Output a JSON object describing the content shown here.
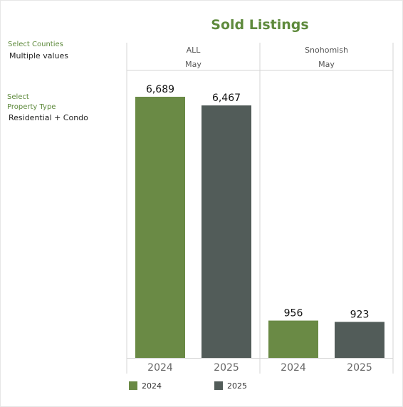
{
  "filters": {
    "counties": {
      "label": "Select Counties",
      "value": "Multiple values"
    },
    "property_type": {
      "label_line1": "Select",
      "label_line2": "Property Type",
      "value": "Residential + Condo"
    }
  },
  "legend": [
    {
      "label": "2024",
      "color": "#6a8a45"
    },
    {
      "label": "2025",
      "color": "#525c59"
    }
  ],
  "chart_data": {
    "type": "bar",
    "title": "Sold Listings",
    "panels": [
      {
        "region": "ALL",
        "month": "May",
        "categories": [
          "2024",
          "2025"
        ],
        "values": [
          6689,
          6467
        ],
        "value_labels": [
          "6,689",
          "6,467"
        ]
      },
      {
        "region": "Snohomish",
        "month": "May",
        "categories": [
          "2024",
          "2025"
        ],
        "values": [
          956,
          923
        ],
        "value_labels": [
          "956",
          "923"
        ]
      }
    ],
    "colors": [
      "#6a8a45",
      "#525c59"
    ],
    "ylim": [
      0,
      6689
    ],
    "grid": false,
    "legend_position": "bottom"
  }
}
